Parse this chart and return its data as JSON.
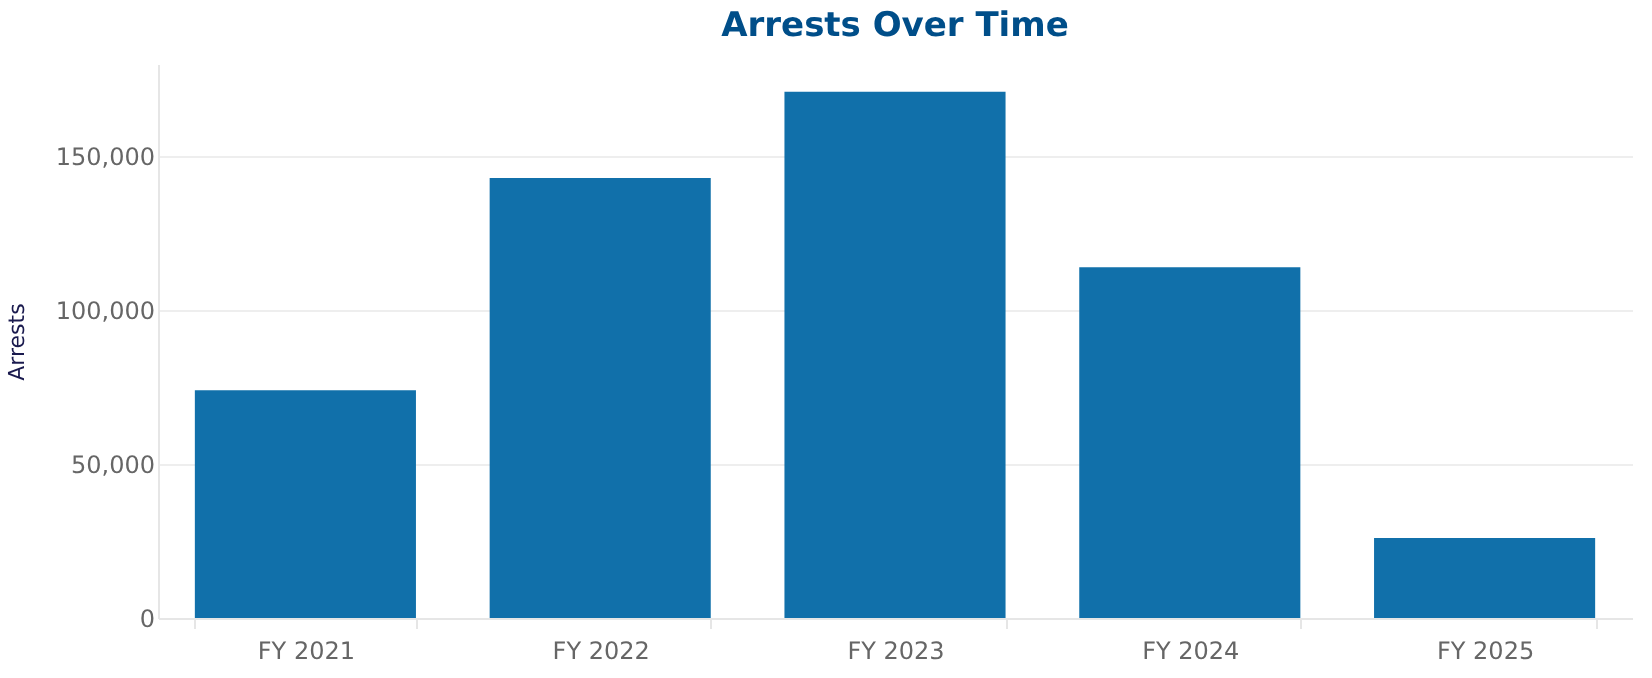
{
  "chart_data": {
    "type": "bar",
    "title": "Arrests Over Time",
    "ylabel": "Arrests",
    "categories": [
      "FY 2021",
      "FY 2022",
      "FY 2023",
      "FY 2024",
      "FY 2025"
    ],
    "values": [
      74000,
      143000,
      171000,
      114000,
      26000
    ],
    "color": "#1170aa",
    "ylim": [
      0,
      180000
    ],
    "yticks": [
      0,
      {
        "value": 50000,
        "label": "50,000"
      },
      {
        "value": 100000,
        "label": "100,000"
      },
      {
        "value": 150000,
        "label": "150,000"
      }
    ],
    "grid": "y"
  }
}
